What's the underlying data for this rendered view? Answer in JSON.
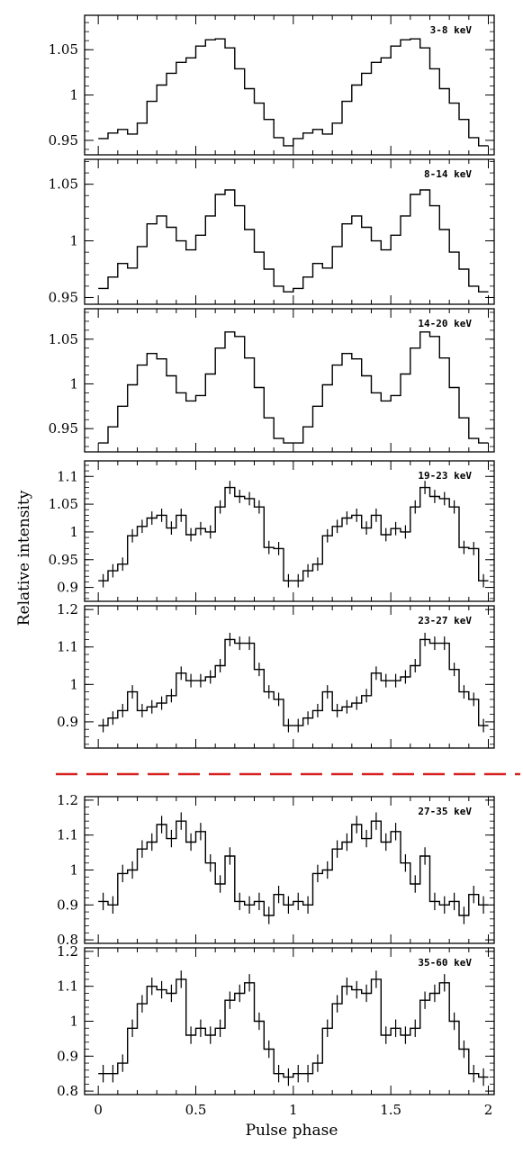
{
  "figure": {
    "ylabel": "Relative intensity",
    "xlabel": "Pulse phase",
    "x_ticks": [
      "0",
      "0.5",
      "1",
      "1.5",
      "2"
    ],
    "separator_color": "#d62020"
  },
  "chart_data": [
    {
      "type": "line",
      "label": "3-8 keV",
      "xlim": [
        -0.07,
        2.03
      ],
      "ylim": [
        0.934,
        1.088
      ],
      "yticks": [
        0.95,
        1,
        1.05
      ],
      "ytick_labels": [
        "0.95",
        "1",
        "1.05"
      ],
      "errors": false,
      "x": [
        0.025,
        0.075,
        0.125,
        0.175,
        0.225,
        0.275,
        0.325,
        0.375,
        0.425,
        0.475,
        0.525,
        0.575,
        0.625,
        0.675,
        0.725,
        0.775,
        0.825,
        0.875,
        0.925,
        0.975,
        1.025,
        1.075,
        1.125,
        1.175,
        1.225,
        1.275,
        1.325,
        1.375,
        1.425,
        1.475,
        1.525,
        1.575,
        1.625,
        1.675,
        1.725,
        1.775,
        1.825,
        1.875,
        1.925,
        1.975
      ],
      "y": [
        0.952,
        0.958,
        0.962,
        0.957,
        0.969,
        0.993,
        1.011,
        1.024,
        1.036,
        1.041,
        1.054,
        1.061,
        1.062,
        1.052,
        1.029,
        1.007,
        0.991,
        0.973,
        0.953,
        0.944,
        0.952,
        0.958,
        0.962,
        0.957,
        0.969,
        0.993,
        1.011,
        1.024,
        1.036,
        1.041,
        1.054,
        1.061,
        1.062,
        1.052,
        1.029,
        1.007,
        0.991,
        0.973,
        0.953,
        0.944
      ]
    },
    {
      "type": "line",
      "label": "8-14 keV",
      "xlim": [
        -0.07,
        2.03
      ],
      "ylim": [
        0.944,
        1.072
      ],
      "yticks": [
        0.95,
        1,
        1.05
      ],
      "ytick_labels": [
        "0.95",
        "1",
        "1.05"
      ],
      "errors": false,
      "x": [
        0.025,
        0.075,
        0.125,
        0.175,
        0.225,
        0.275,
        0.325,
        0.375,
        0.425,
        0.475,
        0.525,
        0.575,
        0.625,
        0.675,
        0.725,
        0.775,
        0.825,
        0.875,
        0.925,
        0.975,
        1.025,
        1.075,
        1.125,
        1.175,
        1.225,
        1.275,
        1.325,
        1.375,
        1.425,
        1.475,
        1.525,
        1.575,
        1.625,
        1.675,
        1.725,
        1.775,
        1.825,
        1.875,
        1.925,
        1.975
      ],
      "y": [
        0.958,
        0.968,
        0.98,
        0.976,
        0.995,
        1.015,
        1.022,
        1.012,
        1.0,
        0.992,
        1.005,
        1.022,
        1.041,
        1.045,
        1.031,
        1.01,
        0.99,
        0.975,
        0.96,
        0.955,
        0.958,
        0.968,
        0.98,
        0.976,
        0.995,
        1.015,
        1.022,
        1.012,
        1.0,
        0.992,
        1.005,
        1.022,
        1.041,
        1.045,
        1.031,
        1.01,
        0.99,
        0.975,
        0.96,
        0.955
      ]
    },
    {
      "type": "line",
      "label": "14-20 keV",
      "xlim": [
        -0.07,
        2.03
      ],
      "ylim": [
        0.924,
        1.084
      ],
      "yticks": [
        0.95,
        1,
        1.05
      ],
      "ytick_labels": [
        "0.95",
        "1",
        "1.05"
      ],
      "errors": false,
      "x": [
        0.025,
        0.075,
        0.125,
        0.175,
        0.225,
        0.275,
        0.325,
        0.375,
        0.425,
        0.475,
        0.525,
        0.575,
        0.625,
        0.675,
        0.725,
        0.775,
        0.825,
        0.875,
        0.925,
        0.975,
        1.025,
        1.075,
        1.125,
        1.175,
        1.225,
        1.275,
        1.325,
        1.375,
        1.425,
        1.475,
        1.525,
        1.575,
        1.625,
        1.675,
        1.725,
        1.775,
        1.825,
        1.875,
        1.925,
        1.975
      ],
      "y": [
        0.934,
        0.952,
        0.975,
        0.999,
        1.021,
        1.034,
        1.028,
        1.009,
        0.99,
        0.981,
        0.987,
        1.011,
        1.04,
        1.058,
        1.053,
        1.029,
        0.996,
        0.962,
        0.939,
        0.934,
        0.934,
        0.952,
        0.975,
        0.999,
        1.021,
        1.034,
        1.028,
        1.009,
        0.99,
        0.981,
        0.987,
        1.011,
        1.04,
        1.058,
        1.053,
        1.029,
        0.996,
        0.962,
        0.939,
        0.934
      ]
    },
    {
      "type": "line",
      "label": "19-23 keV",
      "xlim": [
        -0.07,
        2.03
      ],
      "ylim": [
        0.875,
        1.128
      ],
      "yticks": [
        0.9,
        0.95,
        1,
        1.05,
        1.1
      ],
      "ytick_labels": [
        "0.9",
        "0.95",
        "1",
        "1.05",
        "1.1"
      ],
      "errors": true,
      "x": [
        0.025,
        0.075,
        0.125,
        0.175,
        0.225,
        0.275,
        0.325,
        0.375,
        0.425,
        0.475,
        0.525,
        0.575,
        0.625,
        0.675,
        0.725,
        0.775,
        0.825,
        0.875,
        0.925,
        0.975,
        1.025,
        1.075,
        1.125,
        1.175,
        1.225,
        1.275,
        1.325,
        1.375,
        1.425,
        1.475,
        1.525,
        1.575,
        1.625,
        1.675,
        1.725,
        1.775,
        1.825,
        1.875,
        1.925,
        1.975
      ],
      "y": [
        0.912,
        0.93,
        0.942,
        0.993,
        1.01,
        1.025,
        1.03,
        1.007,
        1.03,
        0.995,
        1.006,
        1.0,
        1.045,
        1.08,
        1.064,
        1.06,
        1.045,
        0.972,
        0.97,
        0.912,
        0.912,
        0.93,
        0.942,
        0.993,
        1.01,
        1.025,
        1.03,
        1.007,
        1.03,
        0.995,
        1.006,
        1.0,
        1.045,
        1.08,
        1.064,
        1.06,
        1.045,
        0.972,
        0.97,
        0.912
      ],
      "err": [
        0.012,
        0.012,
        0.012,
        0.012,
        0.012,
        0.012,
        0.012,
        0.012,
        0.012,
        0.012,
        0.012,
        0.012,
        0.012,
        0.012,
        0.012,
        0.012,
        0.012,
        0.012,
        0.012,
        0.012,
        0.012,
        0.012,
        0.012,
        0.012,
        0.012,
        0.012,
        0.012,
        0.012,
        0.012,
        0.012,
        0.012,
        0.012,
        0.012,
        0.012,
        0.012,
        0.012,
        0.012,
        0.012,
        0.012,
        0.012
      ]
    },
    {
      "type": "line",
      "label": "23-27 keV",
      "xlim": [
        -0.07,
        2.03
      ],
      "ylim": [
        0.83,
        1.21
      ],
      "yticks": [
        0.9,
        1,
        1.1,
        1.2
      ],
      "ytick_labels": [
        "0.9",
        "1",
        "1.1",
        "1.2"
      ],
      "errors": true,
      "x": [
        0.025,
        0.075,
        0.125,
        0.175,
        0.225,
        0.275,
        0.325,
        0.375,
        0.425,
        0.475,
        0.525,
        0.575,
        0.625,
        0.675,
        0.725,
        0.775,
        0.825,
        0.875,
        0.925,
        0.975,
        1.025,
        1.075,
        1.125,
        1.175,
        1.225,
        1.275,
        1.325,
        1.375,
        1.425,
        1.475,
        1.525,
        1.575,
        1.625,
        1.675,
        1.725,
        1.775,
        1.825,
        1.875,
        1.925,
        1.975
      ],
      "y": [
        0.89,
        0.91,
        0.93,
        0.98,
        0.93,
        0.94,
        0.95,
        0.97,
        1.03,
        1.01,
        1.01,
        1.02,
        1.05,
        1.12,
        1.11,
        1.11,
        1.04,
        0.98,
        0.96,
        0.89,
        0.89,
        0.91,
        0.93,
        0.98,
        0.93,
        0.94,
        0.95,
        0.97,
        1.03,
        1.01,
        1.01,
        1.02,
        1.05,
        1.12,
        1.11,
        1.11,
        1.04,
        0.98,
        0.96,
        0.89
      ],
      "err": [
        0.018,
        0.018,
        0.018,
        0.018,
        0.018,
        0.018,
        0.018,
        0.018,
        0.018,
        0.018,
        0.018,
        0.018,
        0.018,
        0.018,
        0.018,
        0.018,
        0.018,
        0.018,
        0.018,
        0.018,
        0.018,
        0.018,
        0.018,
        0.018,
        0.018,
        0.018,
        0.018,
        0.018,
        0.018,
        0.018,
        0.018,
        0.018,
        0.018,
        0.018,
        0.018,
        0.018,
        0.018,
        0.018,
        0.018,
        0.018
      ]
    },
    {
      "type": "line",
      "label": "27-35 keV",
      "xlim": [
        -0.07,
        2.03
      ],
      "ylim": [
        0.79,
        1.21
      ],
      "yticks": [
        0.8,
        0.9,
        1,
        1.1,
        1.2
      ],
      "ytick_labels": [
        "0.8",
        "0.9",
        "1",
        "1.1",
        "1.2"
      ],
      "errors": true,
      "x": [
        0.025,
        0.075,
        0.125,
        0.175,
        0.225,
        0.275,
        0.325,
        0.375,
        0.425,
        0.475,
        0.525,
        0.575,
        0.625,
        0.675,
        0.725,
        0.775,
        0.825,
        0.875,
        0.925,
        0.975,
        1.025,
        1.075,
        1.125,
        1.175,
        1.225,
        1.275,
        1.325,
        1.375,
        1.425,
        1.475,
        1.525,
        1.575,
        1.625,
        1.675,
        1.725,
        1.775,
        1.825,
        1.875,
        1.925,
        1.975
      ],
      "y": [
        0.91,
        0.9,
        0.99,
        1.0,
        1.06,
        1.08,
        1.13,
        1.09,
        1.14,
        1.08,
        1.11,
        1.02,
        0.96,
        1.04,
        0.91,
        0.9,
        0.91,
        0.87,
        0.93,
        0.9,
        0.91,
        0.9,
        0.99,
        1.0,
        1.06,
        1.08,
        1.13,
        1.09,
        1.14,
        1.08,
        1.11,
        1.02,
        0.96,
        1.04,
        0.91,
        0.9,
        0.91,
        0.87,
        0.93,
        0.9
      ],
      "err": [
        0.025,
        0.025,
        0.025,
        0.025,
        0.025,
        0.025,
        0.025,
        0.025,
        0.025,
        0.025,
        0.025,
        0.025,
        0.025,
        0.025,
        0.025,
        0.025,
        0.025,
        0.025,
        0.025,
        0.025,
        0.025,
        0.025,
        0.025,
        0.025,
        0.025,
        0.025,
        0.025,
        0.025,
        0.025,
        0.025,
        0.025,
        0.025,
        0.025,
        0.025,
        0.025,
        0.025,
        0.025,
        0.025,
        0.025,
        0.025
      ]
    },
    {
      "type": "line",
      "label": "35-60 keV",
      "xlim": [
        -0.07,
        2.03
      ],
      "ylim": [
        0.79,
        1.21
      ],
      "yticks": [
        0.8,
        0.9,
        1,
        1.1,
        1.2
      ],
      "ytick_labels": [
        "0.8",
        "0.9",
        "1",
        "1.1",
        "1.2"
      ],
      "errors": true,
      "x": [
        0.025,
        0.075,
        0.125,
        0.175,
        0.225,
        0.275,
        0.325,
        0.375,
        0.425,
        0.475,
        0.525,
        0.575,
        0.625,
        0.675,
        0.725,
        0.775,
        0.825,
        0.875,
        0.925,
        0.975,
        1.025,
        1.075,
        1.125,
        1.175,
        1.225,
        1.275,
        1.325,
        1.375,
        1.425,
        1.475,
        1.525,
        1.575,
        1.625,
        1.675,
        1.725,
        1.775,
        1.825,
        1.875,
        1.925,
        1.975
      ],
      "y": [
        0.85,
        0.85,
        0.88,
        0.98,
        1.05,
        1.1,
        1.09,
        1.08,
        1.12,
        0.96,
        0.98,
        0.96,
        0.98,
        1.06,
        1.08,
        1.11,
        1.0,
        0.92,
        0.85,
        0.84,
        0.85,
        0.85,
        0.88,
        0.98,
        1.05,
        1.1,
        1.09,
        1.08,
        1.12,
        0.96,
        0.98,
        0.96,
        0.98,
        1.06,
        1.08,
        1.11,
        1.0,
        0.92,
        0.85,
        0.84
      ],
      "err": [
        0.025,
        0.025,
        0.025,
        0.025,
        0.025,
        0.025,
        0.025,
        0.025,
        0.025,
        0.025,
        0.025,
        0.025,
        0.025,
        0.025,
        0.025,
        0.025,
        0.025,
        0.025,
        0.025,
        0.025,
        0.025,
        0.025,
        0.025,
        0.025,
        0.025,
        0.025,
        0.025,
        0.025,
        0.025,
        0.025,
        0.025,
        0.025,
        0.025,
        0.025,
        0.025,
        0.025,
        0.025,
        0.025,
        0.025,
        0.025
      ]
    }
  ]
}
